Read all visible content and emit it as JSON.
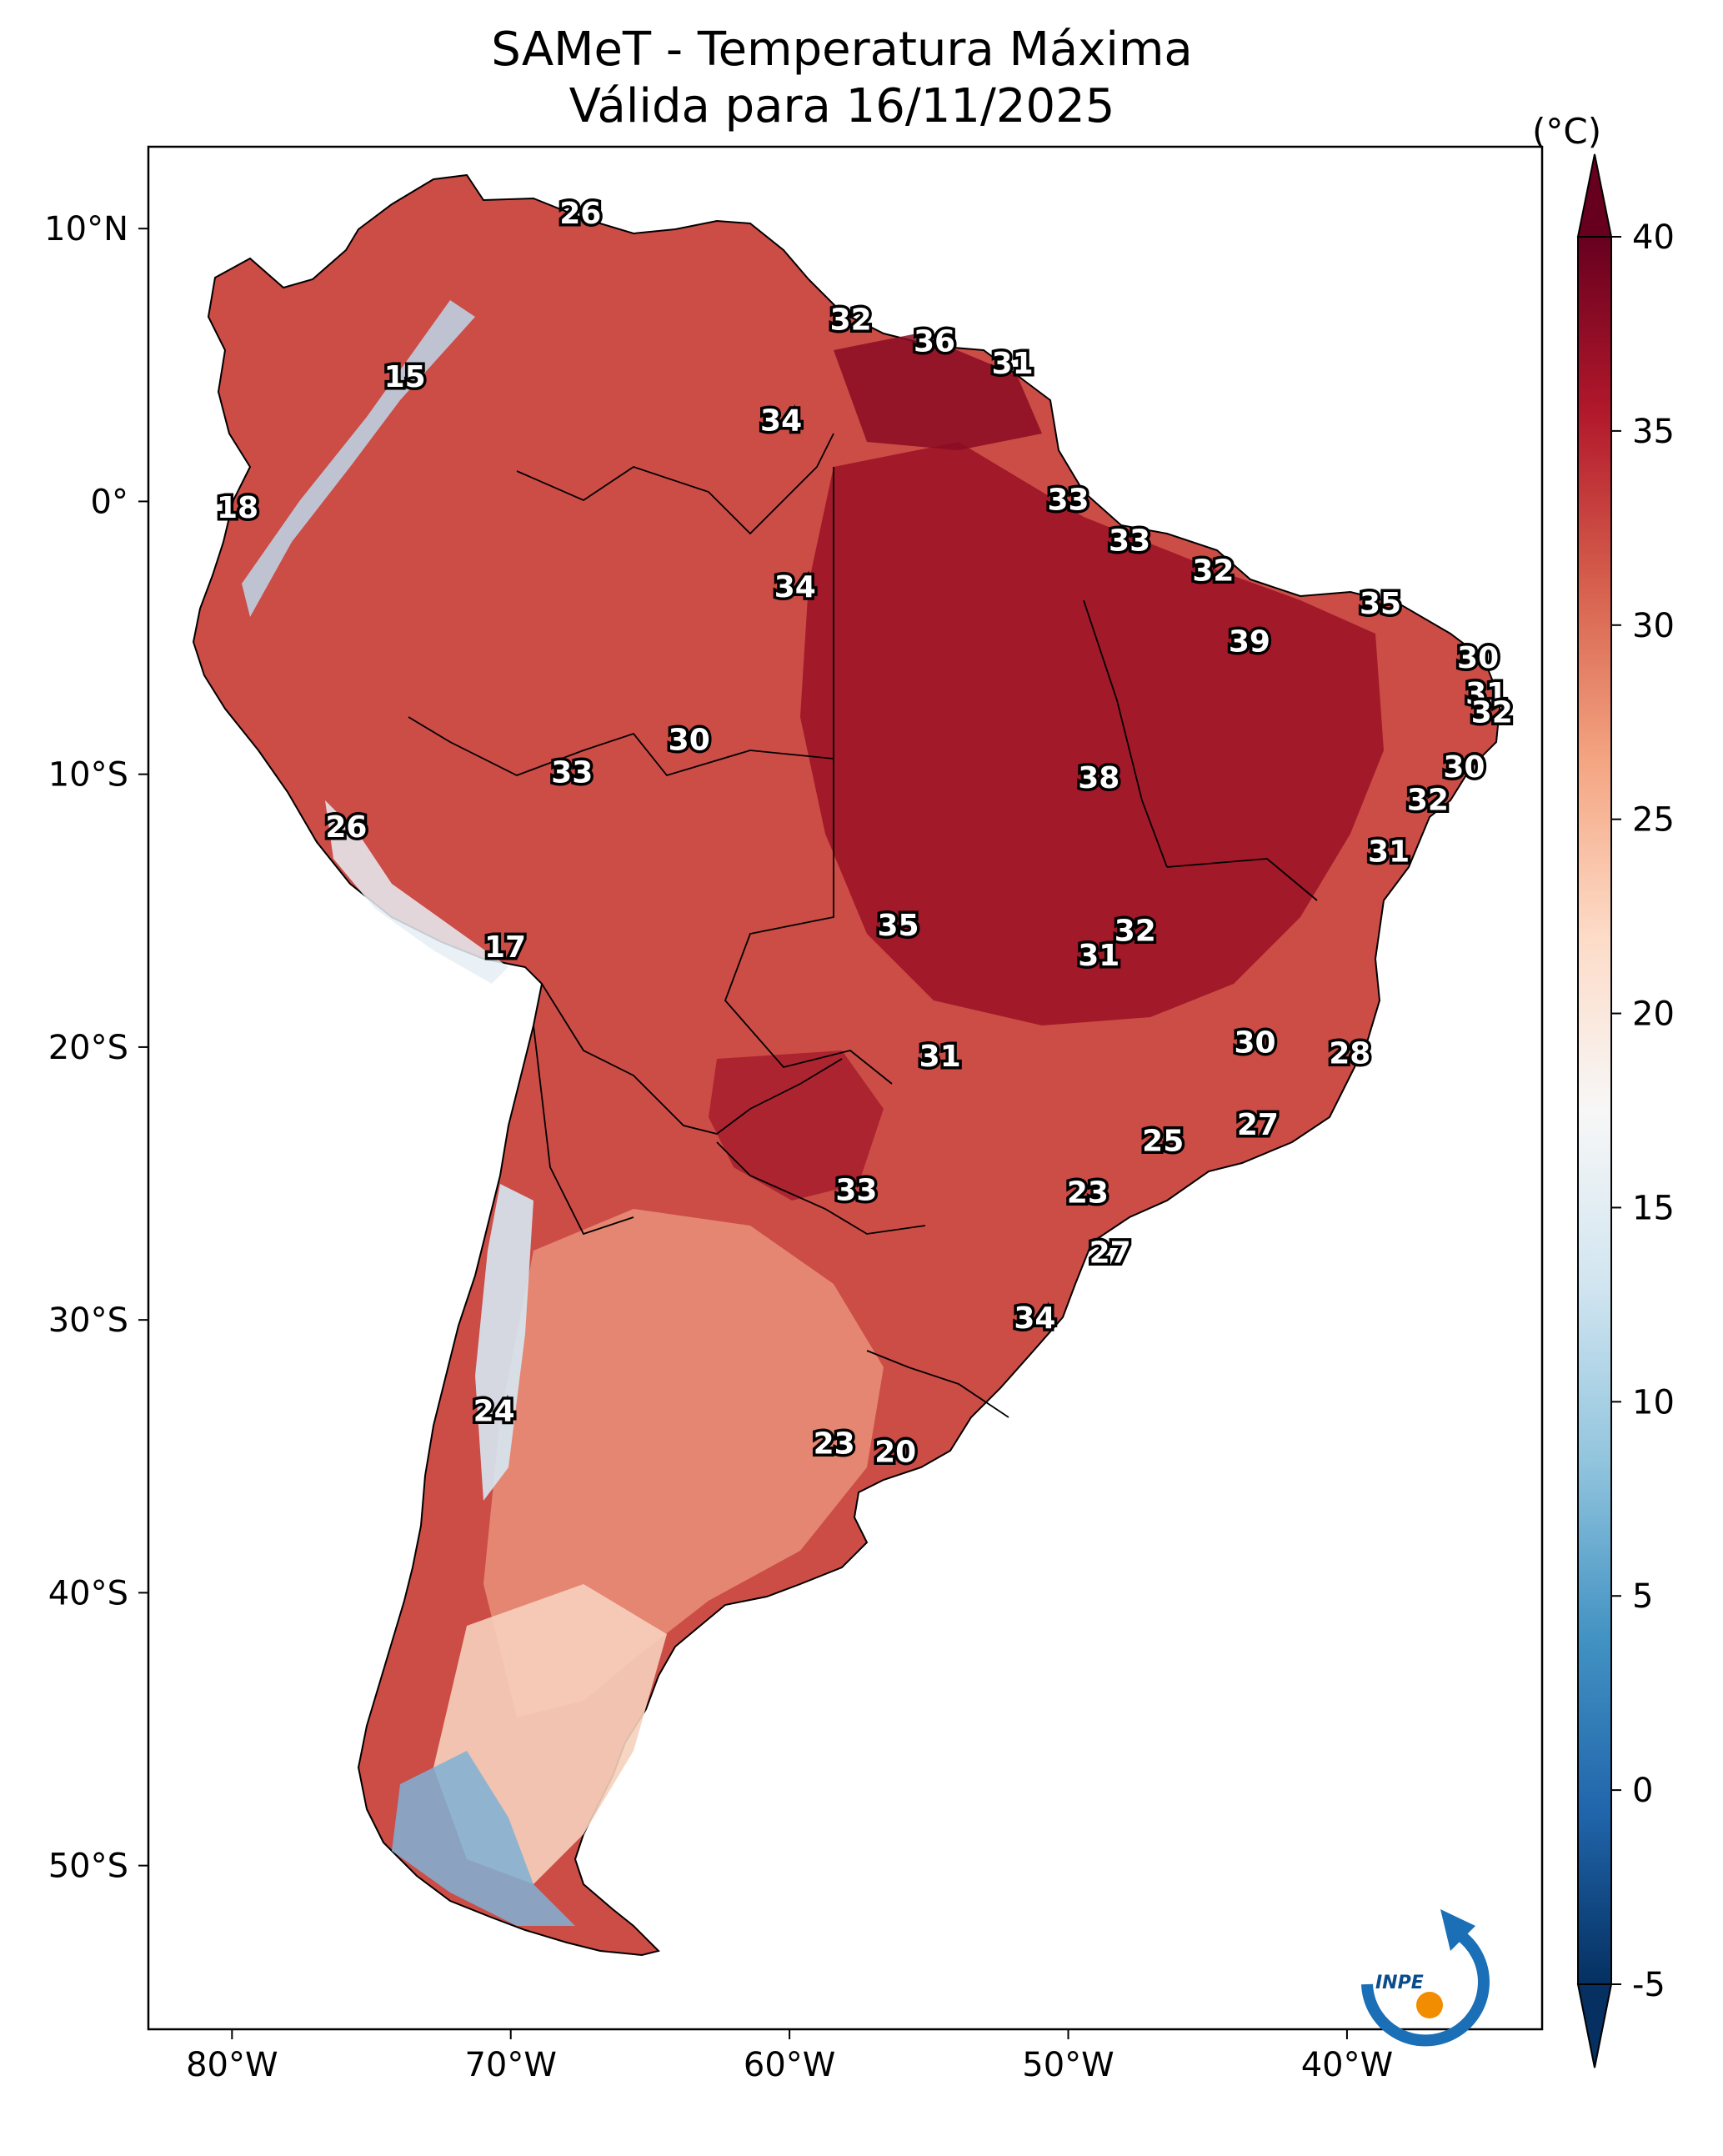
{
  "title": {
    "line1": "SAMeT - Temperatura Máxima",
    "line2": "Válida para 16/11/2025"
  },
  "map": {
    "lon_range": [
      -83,
      -33
    ],
    "lat_range": [
      -56,
      13
    ],
    "x_ticks": [
      {
        "value": -80,
        "label": "80°W"
      },
      {
        "value": -70,
        "label": "70°W"
      },
      {
        "value": -60,
        "label": "60°W"
      },
      {
        "value": -50,
        "label": "50°W"
      },
      {
        "value": -40,
        "label": "40°W"
      }
    ],
    "y_ticks": [
      {
        "value": 10,
        "label": "10°N"
      },
      {
        "value": 0,
        "label": "0°"
      },
      {
        "value": -10,
        "label": "10°S"
      },
      {
        "value": -20,
        "label": "20°S"
      },
      {
        "value": -30,
        "label": "30°S"
      },
      {
        "value": -40,
        "label": "40°S"
      },
      {
        "value": -50,
        "label": "50°S"
      }
    ],
    "station_values": [
      {
        "lon": -67.5,
        "lat": 10.5,
        "label": "26"
      },
      {
        "lon": -57.8,
        "lat": 6.6,
        "label": "32"
      },
      {
        "lon": -54.8,
        "lat": 5.8,
        "label": "36"
      },
      {
        "lon": -52.0,
        "lat": 5.0,
        "label": "31"
      },
      {
        "lon": -73.8,
        "lat": 4.5,
        "label": "15"
      },
      {
        "lon": -60.3,
        "lat": 2.9,
        "label": "34"
      },
      {
        "lon": -50.0,
        "lat": 0.0,
        "label": "33"
      },
      {
        "lon": -79.8,
        "lat": -0.3,
        "label": "18"
      },
      {
        "lon": -47.8,
        "lat": -1.5,
        "label": "33"
      },
      {
        "lon": -44.8,
        "lat": -2.6,
        "label": "32"
      },
      {
        "lon": -59.8,
        "lat": -3.2,
        "label": "34"
      },
      {
        "lon": -38.8,
        "lat": -3.8,
        "label": "35"
      },
      {
        "lon": -43.5,
        "lat": -5.2,
        "label": "39"
      },
      {
        "lon": -35.3,
        "lat": -5.8,
        "label": "30"
      },
      {
        "lon": -35.0,
        "lat": -7.1,
        "label": "31"
      },
      {
        "lon": -34.8,
        "lat": -7.8,
        "label": "32"
      },
      {
        "lon": -63.6,
        "lat": -8.8,
        "label": "30"
      },
      {
        "lon": -35.8,
        "lat": -9.8,
        "label": "30"
      },
      {
        "lon": -67.8,
        "lat": -10.0,
        "label": "33"
      },
      {
        "lon": -48.9,
        "lat": -10.2,
        "label": "38"
      },
      {
        "lon": -37.1,
        "lat": -11.0,
        "label": "32"
      },
      {
        "lon": -75.9,
        "lat": -12.0,
        "label": "26"
      },
      {
        "lon": -38.5,
        "lat": -12.9,
        "label": "31"
      },
      {
        "lon": -56.1,
        "lat": -15.6,
        "label": "35"
      },
      {
        "lon": -47.6,
        "lat": -15.8,
        "label": "32"
      },
      {
        "lon": -48.9,
        "lat": -16.7,
        "label": "31"
      },
      {
        "lon": -70.2,
        "lat": -16.4,
        "label": "17"
      },
      {
        "lon": -43.3,
        "lat": -19.9,
        "label": "30"
      },
      {
        "lon": -39.9,
        "lat": -20.3,
        "label": "28"
      },
      {
        "lon": -54.6,
        "lat": -20.4,
        "label": "31"
      },
      {
        "lon": -43.2,
        "lat": -22.9,
        "label": "27"
      },
      {
        "lon": -46.6,
        "lat": -23.5,
        "label": "25"
      },
      {
        "lon": -57.6,
        "lat": -25.3,
        "label": "33"
      },
      {
        "lon": -49.3,
        "lat": -25.4,
        "label": "23"
      },
      {
        "lon": -48.5,
        "lat": -27.6,
        "label": "27"
      },
      {
        "lon": -51.2,
        "lat": -30.0,
        "label": "34"
      },
      {
        "lon": -70.6,
        "lat": -33.4,
        "label": "24"
      },
      {
        "lon": -58.4,
        "lat": -34.6,
        "label": "23"
      },
      {
        "lon": -56.2,
        "lat": -34.9,
        "label": "20"
      }
    ]
  },
  "colorbar": {
    "unit": "(°C)",
    "min": -5,
    "max": 40,
    "ticks": [
      {
        "value": 40,
        "label": "40"
      },
      {
        "value": 35,
        "label": "35"
      },
      {
        "value": 30,
        "label": "30"
      },
      {
        "value": 25,
        "label": "25"
      },
      {
        "value": 20,
        "label": "20"
      },
      {
        "value": 15,
        "label": "15"
      },
      {
        "value": 10,
        "label": "10"
      },
      {
        "value": 5,
        "label": "5"
      },
      {
        "value": 0,
        "label": "0"
      },
      {
        "value": -5,
        "label": "-5"
      }
    ],
    "colors": [
      "#053061",
      "#2166ac",
      "#4393c3",
      "#92c5de",
      "#d1e5f0",
      "#f7f7f7",
      "#fddbc7",
      "#f4a582",
      "#d6604d",
      "#b2182b",
      "#67001f"
    ]
  },
  "logo": {
    "text": "INPE"
  }
}
